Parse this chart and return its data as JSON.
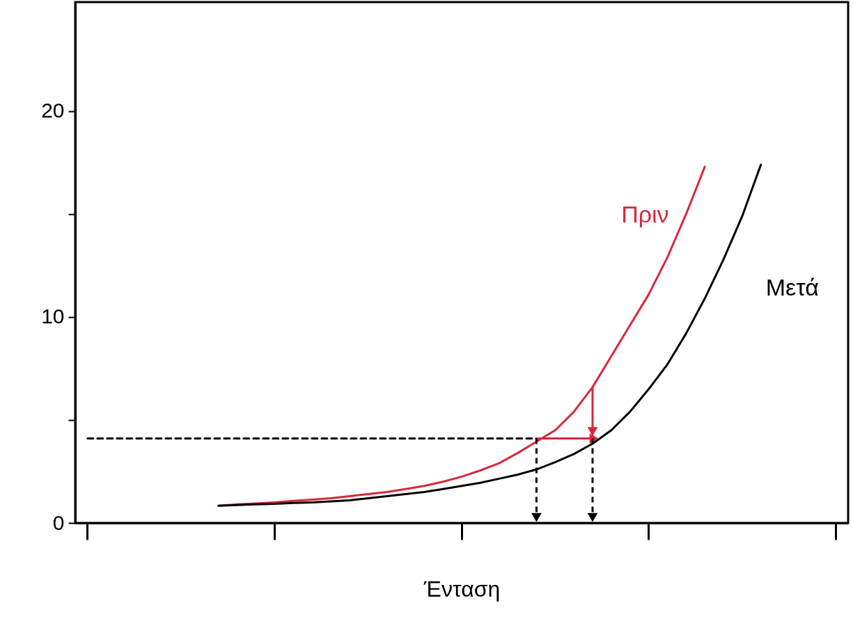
{
  "chart_data": {
    "type": "line",
    "xlabel": "Ένταση",
    "categories": [
      null,
      null,
      null,
      null,
      null,
      null,
      null,
      null,
      null,
      null,
      null,
      null,
      null,
      null,
      null,
      null,
      null,
      null,
      null,
      null,
      null,
      null,
      null,
      null,
      null,
      null,
      null,
      null,
      null,
      null,
      null,
      null,
      null,
      null,
      null,
      null,
      null,
      null,
      null,
      null,
      null
    ],
    "ylim": [
      0,
      25.3
    ],
    "yticks": [
      0,
      {
        "value": 5,
        "label": null
      },
      10,
      {
        "value": 15,
        "label": null
      },
      20
    ],
    "grid": false,
    "tick_labels": "y",
    "marker": "none",
    "line_style": "solid",
    "series": [
      {
        "name": "Πριν",
        "color": "#d8283c",
        "values": [
          null,
          null,
          null,
          null,
          null,
          null,
          null,
          0.84,
          0.9,
          0.95,
          1.0,
          1.07,
          1.13,
          1.2,
          1.3,
          1.4,
          1.5,
          1.65,
          1.8,
          2.0,
          2.25,
          2.55,
          2.9,
          3.4,
          3.95,
          4.5,
          5.4,
          6.6,
          8.1,
          9.6,
          11.1,
          12.9,
          15.0,
          17.3,
          null,
          null,
          null,
          null,
          null,
          null,
          null
        ]
      },
      {
        "name": "Μετά",
        "color": "#000000",
        "values": [
          null,
          null,
          null,
          null,
          null,
          null,
          null,
          0.84,
          0.87,
          0.9,
          0.93,
          0.97,
          1.0,
          1.05,
          1.1,
          1.2,
          1.3,
          1.4,
          1.5,
          1.65,
          1.8,
          1.95,
          2.15,
          2.35,
          2.6,
          2.95,
          3.35,
          3.85,
          4.5,
          5.4,
          6.5,
          7.7,
          9.2,
          10.9,
          12.8,
          14.9,
          17.4,
          null,
          null,
          null,
          null
        ]
      },
      {
        "color": "#000000",
        "line_style": "dashed",
        "values": [
          4.1,
          4.1,
          4.1,
          4.1,
          4.1,
          4.1,
          4.1,
          4.1,
          4.1,
          4.1,
          4.1,
          4.1,
          4.1,
          4.1,
          4.1,
          4.1,
          4.1,
          4.1,
          4.1,
          4.1,
          4.1,
          4.1,
          4.1,
          4.1,
          4.1,
          null,
          null,
          null,
          null,
          null,
          null,
          null,
          null,
          null,
          null,
          null,
          null,
          null,
          null,
          null,
          null
        ]
      },
      {
        "color": "#d8283c",
        "values": [
          null,
          null,
          null,
          null,
          null,
          null,
          null,
          null,
          null,
          null,
          null,
          null,
          null,
          null,
          null,
          null,
          null,
          null,
          null,
          null,
          null,
          null,
          null,
          null,
          4.1,
          4.1,
          4.1,
          4.1,
          null,
          null,
          null,
          null,
          null,
          null,
          null,
          null,
          null,
          null,
          null,
          null,
          null
        ]
      }
    ]
  }
}
